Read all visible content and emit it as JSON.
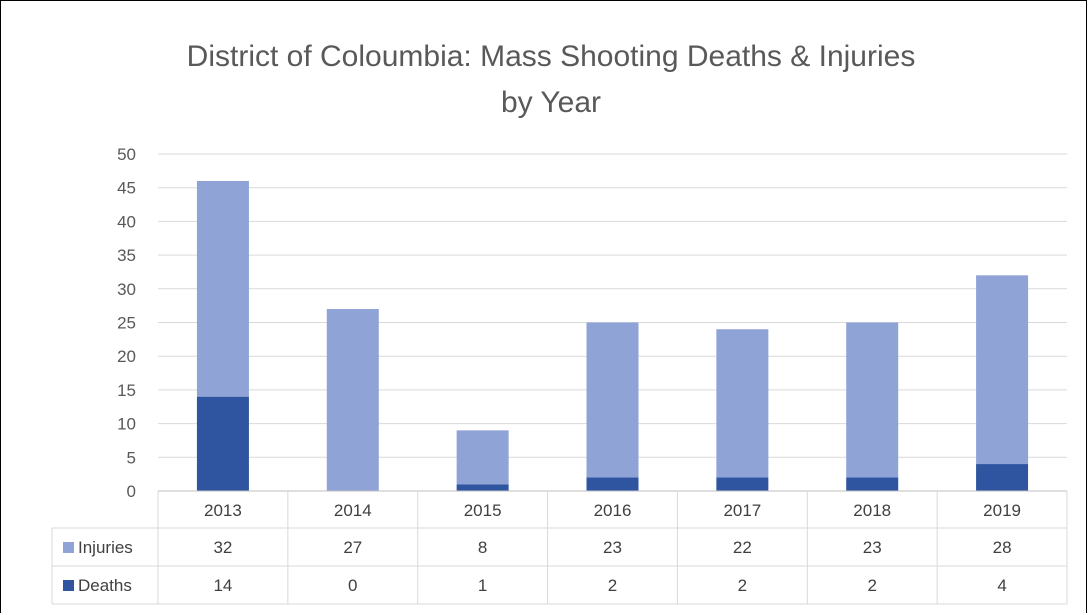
{
  "chart_data": {
    "type": "bar",
    "stacked": true,
    "title_line1": "District of Coloumbia: Mass Shooting Deaths & Injuries",
    "title_line2": "by Year",
    "categories": [
      "2013",
      "2014",
      "2015",
      "2016",
      "2017",
      "2018",
      "2019"
    ],
    "series": [
      {
        "name": "Deaths",
        "color": "#2f55a0",
        "values": [
          14,
          0,
          1,
          2,
          2,
          2,
          4
        ]
      },
      {
        "name": "Injuries",
        "color": "#8fa3d6",
        "values": [
          32,
          27,
          8,
          23,
          22,
          23,
          28
        ]
      }
    ],
    "table_rows": [
      {
        "name": "Injuries",
        "color": "#8fa3d6",
        "values": [
          "32",
          "27",
          "8",
          "23",
          "22",
          "23",
          "28"
        ]
      },
      {
        "name": "Deaths",
        "color": "#2f55a0",
        "values": [
          "14",
          "0",
          "1",
          "2",
          "2",
          "2",
          "4"
        ]
      }
    ],
    "yticks": [
      "0",
      "5",
      "10",
      "15",
      "20",
      "25",
      "30",
      "35",
      "40",
      "45",
      "50"
    ],
    "ylim": [
      0,
      50
    ],
    "grid": true,
    "legend": "data-table"
  }
}
